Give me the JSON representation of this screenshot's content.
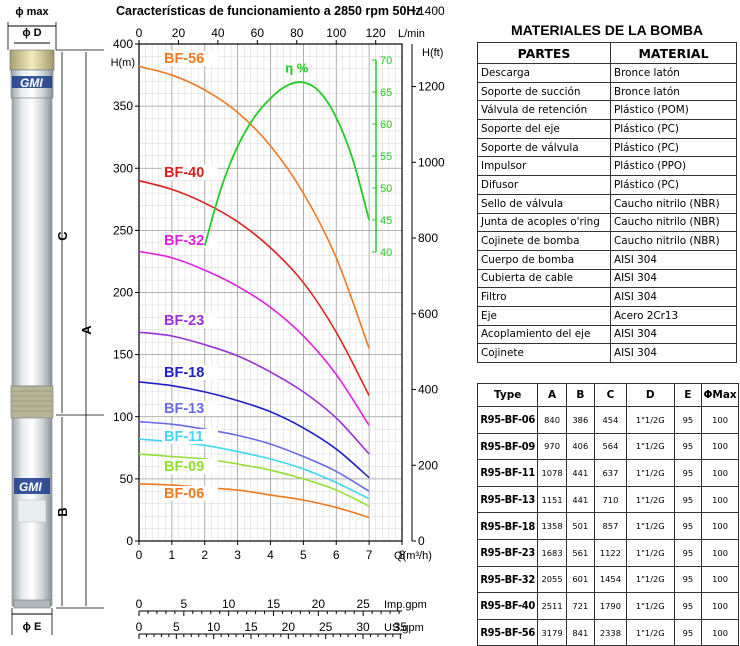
{
  "pump": {
    "brand": "GMI",
    "label_phi_max": "ϕ max",
    "label_phi_d": "ϕ D",
    "label_c": "C",
    "label_a": "A",
    "label_b": "B",
    "label_phi_e": "ϕ E"
  },
  "chart_data": {
    "type": "line",
    "title": "Características de funcionamiento a 2850 rpm 50Hz",
    "xlabel": "Q(m³/h)",
    "ylabel": "H(m)",
    "xlim": [
      0,
      8
    ],
    "ylim": [
      0,
      400
    ],
    "x_ticks": [
      0,
      1,
      2,
      3,
      4,
      5,
      6,
      7,
      8
    ],
    "y_ticks": [
      0,
      50,
      100,
      150,
      200,
      250,
      300,
      350,
      400
    ],
    "grid": true,
    "top_axis": {
      "label": "L/min",
      "ticks": [
        0,
        20,
        40,
        60,
        80,
        100,
        120
      ]
    },
    "right_axis": {
      "label": "H(ft)",
      "ticks": [
        0,
        200,
        400,
        600,
        800,
        1000,
        1200,
        1400
      ]
    },
    "efficiency_axis": {
      "label": "η %",
      "ticks": [
        40,
        45,
        50,
        55,
        60,
        65,
        70
      ],
      "color": "#22cc22"
    },
    "bottom_axes": [
      {
        "label": "Imp.gpm",
        "ticks": [
          0,
          5,
          10,
          15,
          20,
          25
        ]
      },
      {
        "label": "US.gpm",
        "ticks": [
          0,
          5,
          10,
          15,
          20,
          25,
          30,
          35
        ]
      }
    ],
    "series": [
      {
        "name": "BF-56",
        "color": "#f07820",
        "x": [
          0,
          1,
          2,
          3,
          4,
          5,
          6,
          7
        ],
        "y": [
          382,
          375,
          363,
          345,
          318,
          280,
          228,
          155
        ]
      },
      {
        "name": "BF-40",
        "color": "#e02020",
        "x": [
          0,
          1,
          2,
          3,
          4,
          5,
          6,
          7
        ],
        "y": [
          290,
          283,
          272,
          257,
          236,
          208,
          168,
          117
        ]
      },
      {
        "name": "BF-32",
        "color": "#e020e0",
        "x": [
          0,
          1,
          2,
          3,
          4,
          5,
          6,
          7
        ],
        "y": [
          233,
          228,
          218,
          205,
          188,
          165,
          134,
          93
        ]
      },
      {
        "name": "BF-23",
        "color": "#9a30d8",
        "x": [
          0,
          1,
          2,
          3,
          4,
          5,
          6,
          7
        ],
        "y": [
          168,
          165,
          158,
          149,
          136,
          120,
          99,
          70
        ]
      },
      {
        "name": "BF-18",
        "color": "#2020c8",
        "x": [
          0,
          1,
          2,
          3,
          4,
          5,
          6,
          7
        ],
        "y": [
          128,
          125,
          120,
          113,
          104,
          91,
          74,
          51
        ]
      },
      {
        "name": "BF-13",
        "color": "#6a6ae8",
        "x": [
          0,
          1,
          2,
          3,
          4,
          5,
          6,
          7
        ],
        "y": [
          96,
          94,
          90,
          85,
          78,
          68,
          56,
          40
        ]
      },
      {
        "name": "BF-11",
        "color": "#40d8f0",
        "x": [
          0,
          1,
          2,
          3,
          4,
          5,
          6,
          7
        ],
        "y": [
          82,
          80,
          77,
          72,
          66,
          58,
          47,
          34
        ]
      },
      {
        "name": "BF-09",
        "color": "#90e030",
        "x": [
          0,
          1,
          2,
          3,
          4,
          5,
          6,
          7
        ],
        "y": [
          70,
          68,
          66,
          62,
          57,
          50,
          41,
          28
        ]
      },
      {
        "name": "BF-06",
        "color": "#f07820",
        "x": [
          0,
          1,
          2,
          3,
          4,
          5,
          6,
          7
        ],
        "y": [
          46,
          45,
          43,
          41,
          37,
          33,
          27,
          19
        ]
      }
    ],
    "efficiency": {
      "name": "η %",
      "color": "#22cc22",
      "x": [
        2,
        2.5,
        3,
        3.5,
        4,
        4.5,
        5,
        5.5,
        6,
        6.5,
        7
      ],
      "y": [
        41,
        50,
        56.5,
        61,
        64,
        66,
        66.5,
        65,
        61,
        54.5,
        45
      ]
    }
  },
  "materials": {
    "title": "MATERIALES DE LA BOMBA",
    "headers": [
      "PARTES",
      "MATERIAL"
    ],
    "rows": [
      [
        "Descarga",
        "Bronce latón"
      ],
      [
        "Soporte de succión",
        "Bronce latón"
      ],
      [
        "Válvula de retención",
        "Plástico (POM)"
      ],
      [
        "Soporte del eje",
        "Plástico (PC)"
      ],
      [
        "Soporte de válvula",
        "Plástico (PC)"
      ],
      [
        "Impulsor",
        "Plástico (PPO)"
      ],
      [
        "Difusor",
        "Plástico (PC)"
      ],
      [
        "Sello de válvula",
        "Caucho nitrilo (NBR)"
      ],
      [
        "Junta de acoples o'ring",
        "Caucho nitrilo (NBR)"
      ],
      [
        "Cojinete de bomba",
        "Caucho nitrilo (NBR)"
      ],
      [
        "Cuerpo de bomba",
        "AISI 304"
      ],
      [
        "Cubierta de cable",
        "AISI 304"
      ],
      [
        "Filtro",
        "AISI 304"
      ],
      [
        "Eje",
        "Acero 2Cr13"
      ],
      [
        "Acoplamiento del eje",
        "AISI 304"
      ],
      [
        "Cojinete",
        "AISI 304"
      ]
    ]
  },
  "dimensions": {
    "headers": [
      "Type",
      "A",
      "B",
      "C",
      "D",
      "E",
      "ΦMax"
    ],
    "rows": [
      [
        "R95-BF-06",
        "840",
        "386",
        "454",
        "1\"1/2G",
        "95",
        "100"
      ],
      [
        "R95-BF-09",
        "970",
        "406",
        "564",
        "1\"1/2G",
        "95",
        "100"
      ],
      [
        "R95-BF-11",
        "1078",
        "441",
        "637",
        "1\"1/2G",
        "95",
        "100"
      ],
      [
        "R95-BF-13",
        "1151",
        "441",
        "710",
        "1\"1/2G",
        "95",
        "100"
      ],
      [
        "R95-BF-18",
        "1358",
        "501",
        "857",
        "1\"1/2G",
        "95",
        "100"
      ],
      [
        "R95-BF-23",
        "1683",
        "561",
        "1122",
        "1\"1/2G",
        "95",
        "100"
      ],
      [
        "R95-BF-32",
        "2055",
        "601",
        "1454",
        "1\"1/2G",
        "95",
        "100"
      ],
      [
        "R95-BF-40",
        "2511",
        "721",
        "1790",
        "1\"1/2G",
        "95",
        "100"
      ],
      [
        "R95-BF-56",
        "3179",
        "841",
        "2338",
        "1\"1/2G",
        "95",
        "100"
      ]
    ]
  }
}
